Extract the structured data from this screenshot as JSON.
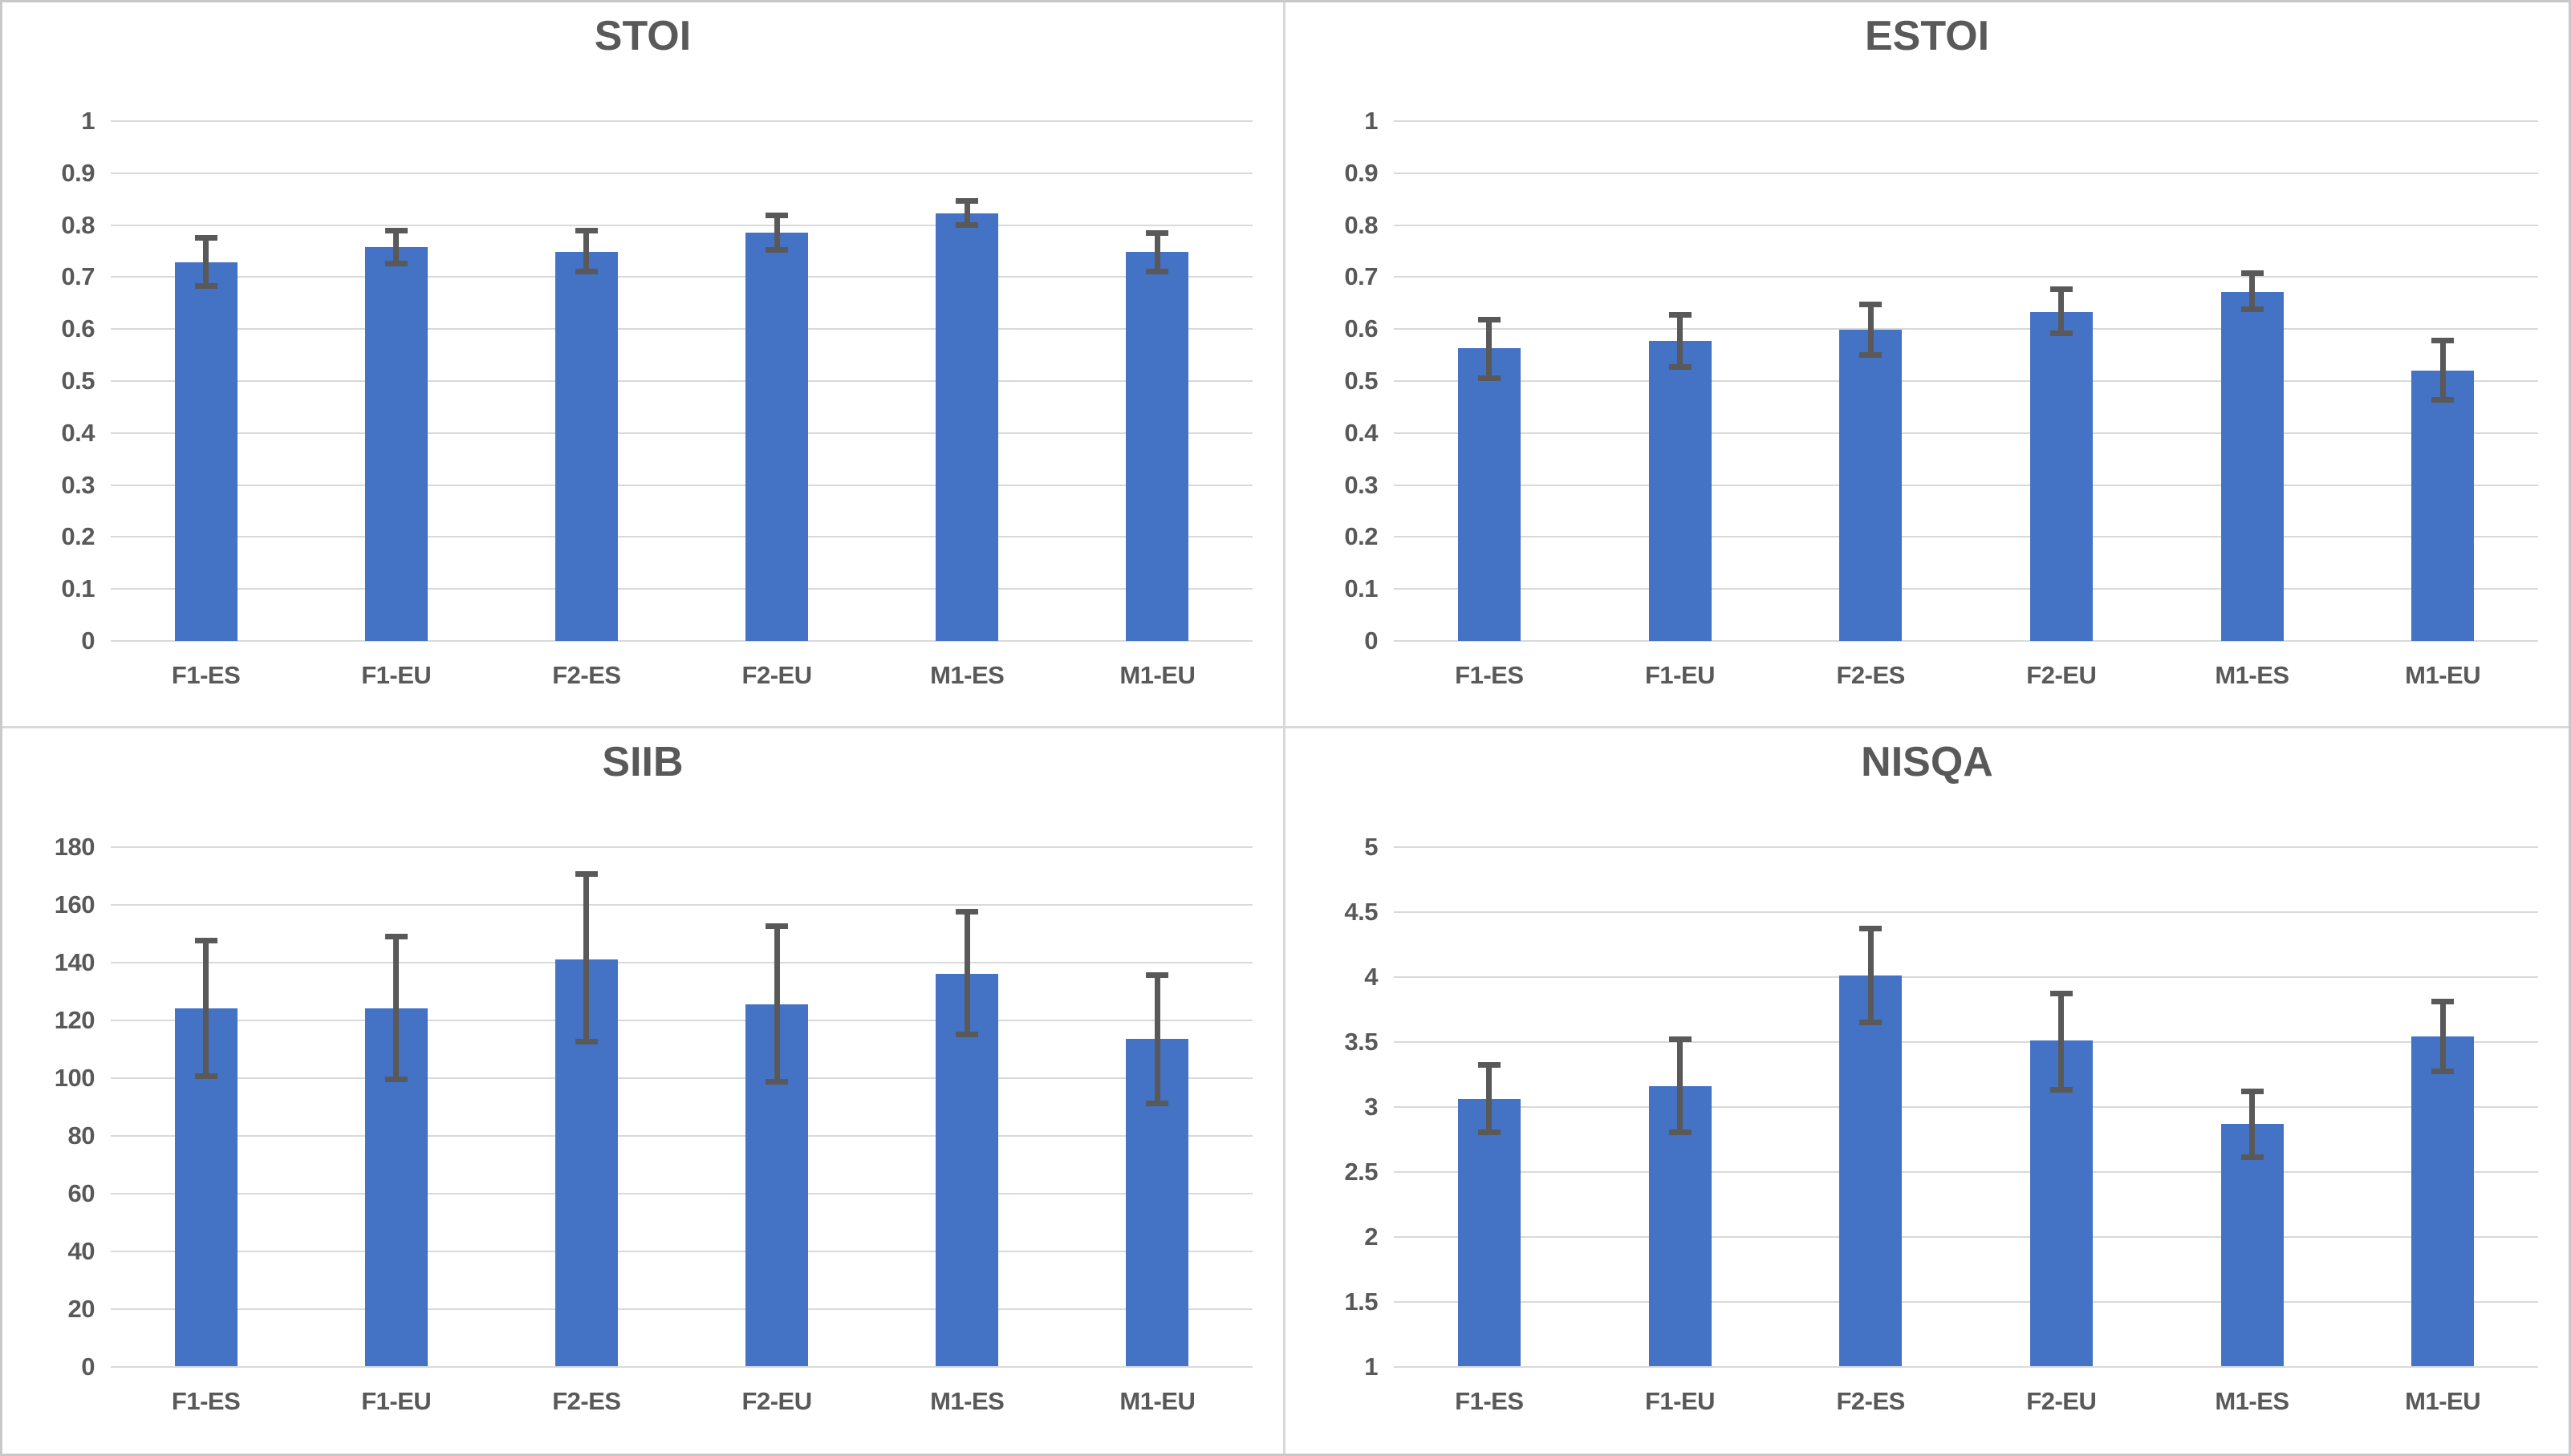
{
  "colors": {
    "bar": "#4472c4",
    "error_bar": "#595959",
    "gridline": "#d9d9d9",
    "axis_line": "#d9d9d9",
    "title_text": "#595959",
    "tick_text": "#595959",
    "background": "#ffffff",
    "panel_divider": "#d9d9d9"
  },
  "chart_data": [
    {
      "type": "bar",
      "title": "STOI",
      "categories": [
        "F1-ES",
        "F1-EU",
        "F2-ES",
        "F2-EU",
        "M1-ES",
        "M1-EU"
      ],
      "values": [
        0.728,
        0.757,
        0.748,
        0.786,
        0.822,
        0.748
      ],
      "error_low": [
        0.683,
        0.726,
        0.71,
        0.752,
        0.8,
        0.71
      ],
      "error_high": [
        0.776,
        0.79,
        0.79,
        0.818,
        0.847,
        0.785
      ],
      "xlabel": "",
      "ylabel": "",
      "ylim": [
        0,
        1
      ],
      "yticks": [
        1,
        0.9,
        0.8,
        0.7,
        0.6,
        0.5,
        0.4,
        0.3,
        0.2,
        0.1,
        0
      ],
      "ytick_labels": [
        "1",
        "0.9",
        "0.8",
        "0.7",
        "0.6",
        "0.5",
        "0.4",
        "0.3",
        "0.2",
        "0.1",
        "0"
      ],
      "grid": true,
      "legend": null
    },
    {
      "type": "bar",
      "title": "ESTOI",
      "categories": [
        "F1-ES",
        "F1-EU",
        "F2-ES",
        "F2-EU",
        "M1-ES",
        "M1-EU"
      ],
      "values": [
        0.563,
        0.577,
        0.598,
        0.632,
        0.672,
        0.52
      ],
      "error_low": [
        0.505,
        0.527,
        0.55,
        0.592,
        0.638,
        0.463
      ],
      "error_high": [
        0.618,
        0.627,
        0.647,
        0.677,
        0.708,
        0.578
      ],
      "xlabel": "",
      "ylabel": "",
      "ylim": [
        0,
        1
      ],
      "yticks": [
        1,
        0.9,
        0.8,
        0.7,
        0.6,
        0.5,
        0.4,
        0.3,
        0.2,
        0.1,
        0
      ],
      "ytick_labels": [
        "1",
        "0.9",
        "0.8",
        "0.7",
        "0.6",
        "0.5",
        "0.4",
        "0.3",
        "0.2",
        "0.1",
        "0"
      ],
      "grid": true,
      "legend": null
    },
    {
      "type": "bar",
      "title": "SIIB",
      "categories": [
        "F1-ES",
        "F1-EU",
        "F2-ES",
        "F2-EU",
        "M1-ES",
        "M1-EU"
      ],
      "values": [
        124,
        124,
        141,
        125.5,
        136,
        113.5
      ],
      "error_low": [
        100.5,
        99.5,
        112.5,
        98.5,
        115,
        91
      ],
      "error_high": [
        147.5,
        149,
        170.5,
        152.5,
        157.5,
        135.5
      ],
      "xlabel": "",
      "ylabel": "",
      "ylim": [
        0,
        180
      ],
      "yticks": [
        180,
        160,
        140,
        120,
        100,
        80,
        60,
        40,
        20,
        0
      ],
      "ytick_labels": [
        "180",
        "160",
        "140",
        "120",
        "100",
        "80",
        "60",
        "40",
        "20",
        "0"
      ],
      "grid": true,
      "legend": null
    },
    {
      "type": "bar",
      "title": "NISQA",
      "categories": [
        "F1-ES",
        "F1-EU",
        "F2-ES",
        "F2-EU",
        "M1-ES",
        "M1-EU"
      ],
      "values": [
        3.06,
        3.16,
        4.01,
        3.51,
        2.87,
        3.54
      ],
      "error_low": [
        2.8,
        2.8,
        3.65,
        3.13,
        2.61,
        3.27
      ],
      "error_high": [
        3.32,
        3.52,
        4.37,
        3.87,
        3.12,
        3.81
      ],
      "xlabel": "",
      "ylabel": "",
      "ylim": [
        1,
        5
      ],
      "yticks": [
        5,
        4.5,
        4,
        3.5,
        3,
        2.5,
        2,
        1.5,
        1
      ],
      "ytick_labels": [
        "5",
        "4.5",
        "4",
        "3.5",
        "3",
        "2.5",
        "2",
        "1.5",
        "1"
      ],
      "grid": true,
      "legend": null
    }
  ]
}
